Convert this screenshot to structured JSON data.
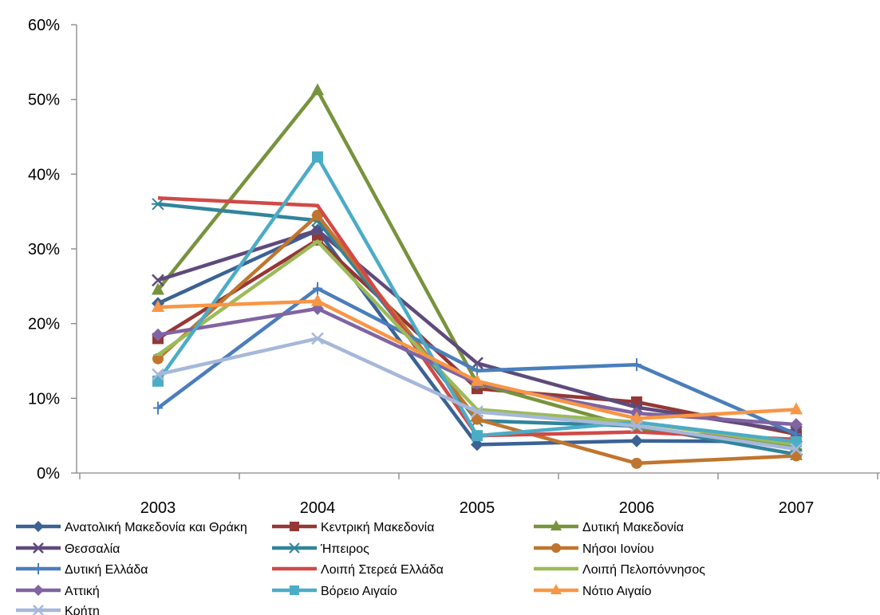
{
  "chart_data": {
    "type": "line",
    "title": "",
    "xlabel": "",
    "ylabel": "",
    "categories": [
      "2003",
      "2004",
      "2005",
      "2006",
      "2007"
    ],
    "ylim": [
      0,
      0.6
    ],
    "yticks": [
      "0%",
      "10%",
      "20%",
      "30%",
      "40%",
      "50%",
      "60%"
    ],
    "grid": false,
    "legend_position": "bottom",
    "series": [
      {
        "name": "Ανατολική Μακεδονία και Θράκη",
        "color": "#3A6295",
        "marker": "diamond",
        "values": [
          0.227,
          0.325,
          0.038,
          0.043,
          0.042
        ]
      },
      {
        "name": "Κεντρική Μακεδονία",
        "color": "#953735",
        "marker": "square",
        "values": [
          0.18,
          0.312,
          0.113,
          0.095,
          0.052
        ]
      },
      {
        "name": "Δυτική Μακεδονία",
        "color": "#77933C",
        "marker": "triangle",
        "values": [
          0.245,
          0.512,
          0.12,
          0.06,
          0.035
        ]
      },
      {
        "name": "Θεσσαλία",
        "color": "#5F4A7B",
        "marker": "x",
        "values": [
          0.258,
          0.325,
          0.147,
          0.088,
          0.055
        ]
      },
      {
        "name": "Ήπειρος",
        "color": "#31849B",
        "marker": "star",
        "values": [
          0.36,
          0.338,
          0.07,
          0.063,
          0.025
        ]
      },
      {
        "name": "Νήσοι Ιονίου",
        "color": "#C0752E",
        "marker": "circle",
        "values": [
          0.153,
          0.345,
          0.072,
          0.013,
          0.023
        ]
      },
      {
        "name": "Δυτική Ελλάδα",
        "color": "#4A7EBB",
        "marker": "plus",
        "values": [
          0.087,
          0.247,
          0.137,
          0.145,
          0.052
        ]
      },
      {
        "name": "Λοιπή Στερεά Ελλάδα",
        "color": "#D04A47",
        "marker": "none",
        "values": [
          0.368,
          0.358,
          0.05,
          0.055,
          0.045
        ]
      },
      {
        "name": "Λοιπή Πελοπόννησος",
        "color": "#9BBB59",
        "marker": "line",
        "values": [
          0.158,
          0.31,
          0.085,
          0.068,
          0.038
        ]
      },
      {
        "name": "Αττική",
        "color": "#8064A2",
        "marker": "diamond",
        "values": [
          0.185,
          0.22,
          0.12,
          0.08,
          0.065
        ]
      },
      {
        "name": "Βόρειο Αιγαίο",
        "color": "#4BACC6",
        "marker": "square",
        "values": [
          0.123,
          0.423,
          0.05,
          0.068,
          0.042
        ]
      },
      {
        "name": "Νότιο Αιγαίο",
        "color": "#F79646",
        "marker": "triangle",
        "values": [
          0.222,
          0.23,
          0.123,
          0.073,
          0.085
        ]
      },
      {
        "name": "Κρήτη",
        "color": "#A6B8D9",
        "marker": "x",
        "values": [
          0.132,
          0.18,
          0.082,
          0.063,
          0.032
        ]
      }
    ]
  }
}
